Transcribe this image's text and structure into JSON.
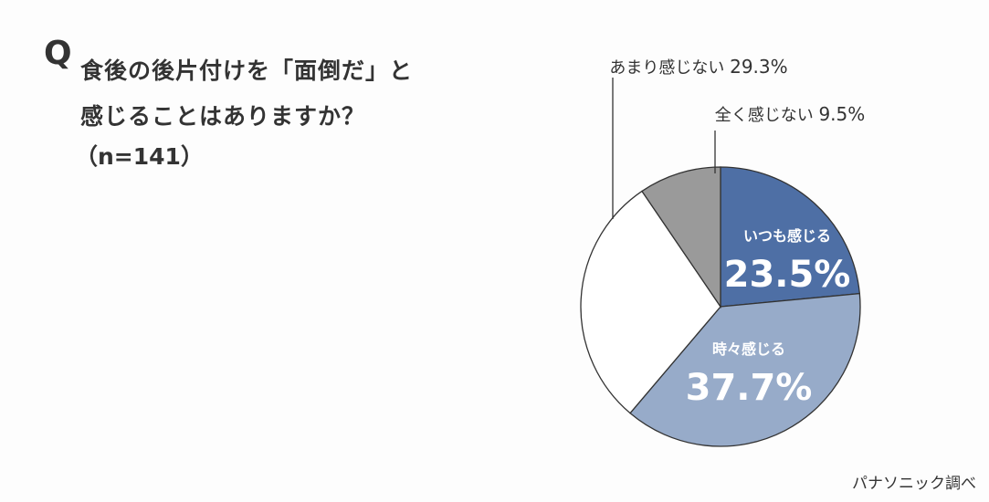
{
  "question": {
    "mark": "Q",
    "line1": "食後の後片付けを「面倒だ」と",
    "line2": "感じることはありますか？",
    "n": "（n=141）"
  },
  "source": "パナソニック調べ",
  "chart_data": {
    "type": "pie",
    "start": "12 o'clock",
    "direction": "clockwise",
    "slices": [
      {
        "label": "いつも感じる",
        "value": 23.5,
        "value_text": "23.5%",
        "color": "#4e6fa5",
        "label_position": "inside",
        "text_color": "#ffffff"
      },
      {
        "label": "時々感じる",
        "value": 37.7,
        "value_text": "37.7%",
        "color": "#97abc9",
        "label_position": "inside",
        "text_color": "#ffffff"
      },
      {
        "label": "あまり感じない",
        "value": 29.3,
        "value_text": "29.3%",
        "color": "#ffffff",
        "label_position": "outside",
        "text_color": "#333333"
      },
      {
        "label": "全く感じない",
        "value": 9.5,
        "value_text": "9.5%",
        "color": "#9a9a9a",
        "label_position": "outside",
        "text_color": "#333333"
      }
    ]
  }
}
